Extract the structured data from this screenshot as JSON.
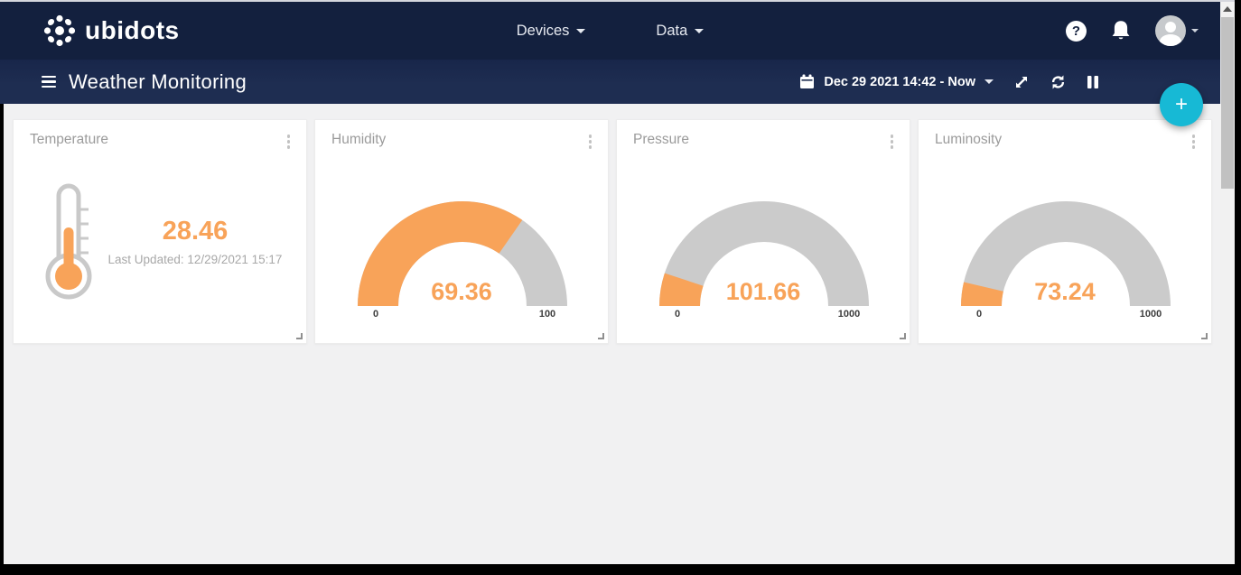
{
  "navbar": {
    "logo_text": "ubidots",
    "menu_devices": "Devices",
    "menu_data": "Data"
  },
  "subheader": {
    "title": "Weather Monitoring",
    "date_range": "Dec 29 2021 14:42 - Now"
  },
  "fab_label": "+",
  "colors": {
    "navbar_bg": "#13203E",
    "subheader_bg": "#1E2D51",
    "page_bg": "#F1F1F2",
    "accent_orange": "#F8A359",
    "gauge_track": "#CBCBCB",
    "fab_teal": "#17B9D5"
  },
  "widgets": [
    {
      "type": "metric",
      "title": "Temperature",
      "display_value": "28.46",
      "last_updated": "Last Updated: 12/29/2021 15:17"
    },
    {
      "type": "gauge",
      "title": "Humidity",
      "display_value": "69.36",
      "value": 69.36,
      "min": 0,
      "max": 100,
      "min_label": "0",
      "max_label": "100"
    },
    {
      "type": "gauge",
      "title": "Pressure",
      "display_value": "101.66",
      "value": 101.66,
      "min": 0,
      "max": 1000,
      "min_label": "0",
      "max_label": "1000"
    },
    {
      "type": "gauge",
      "title": "Luminosity",
      "display_value": "73.24",
      "value": 73.24,
      "min": 0,
      "max": 1000,
      "min_label": "0",
      "max_label": "1000"
    }
  ],
  "chart_data": [
    {
      "type": "gauge",
      "title": "Humidity",
      "value": 69.36,
      "range": [
        0,
        100
      ],
      "tick_labels": [
        "0",
        "100"
      ],
      "fill_color": "#F8A359",
      "track_color": "#CBCBCB"
    },
    {
      "type": "gauge",
      "title": "Pressure",
      "value": 101.66,
      "range": [
        0,
        1000
      ],
      "tick_labels": [
        "0",
        "1000"
      ],
      "fill_color": "#F8A359",
      "track_color": "#CBCBCB"
    },
    {
      "type": "gauge",
      "title": "Luminosity",
      "value": 73.24,
      "range": [
        0,
        1000
      ],
      "tick_labels": [
        "0",
        "1000"
      ],
      "fill_color": "#F8A359",
      "track_color": "#CBCBCB"
    },
    {
      "type": "metric",
      "title": "Temperature",
      "value": 28.46,
      "annotation": "Last Updated: 12/29/2021 15:17"
    }
  ]
}
